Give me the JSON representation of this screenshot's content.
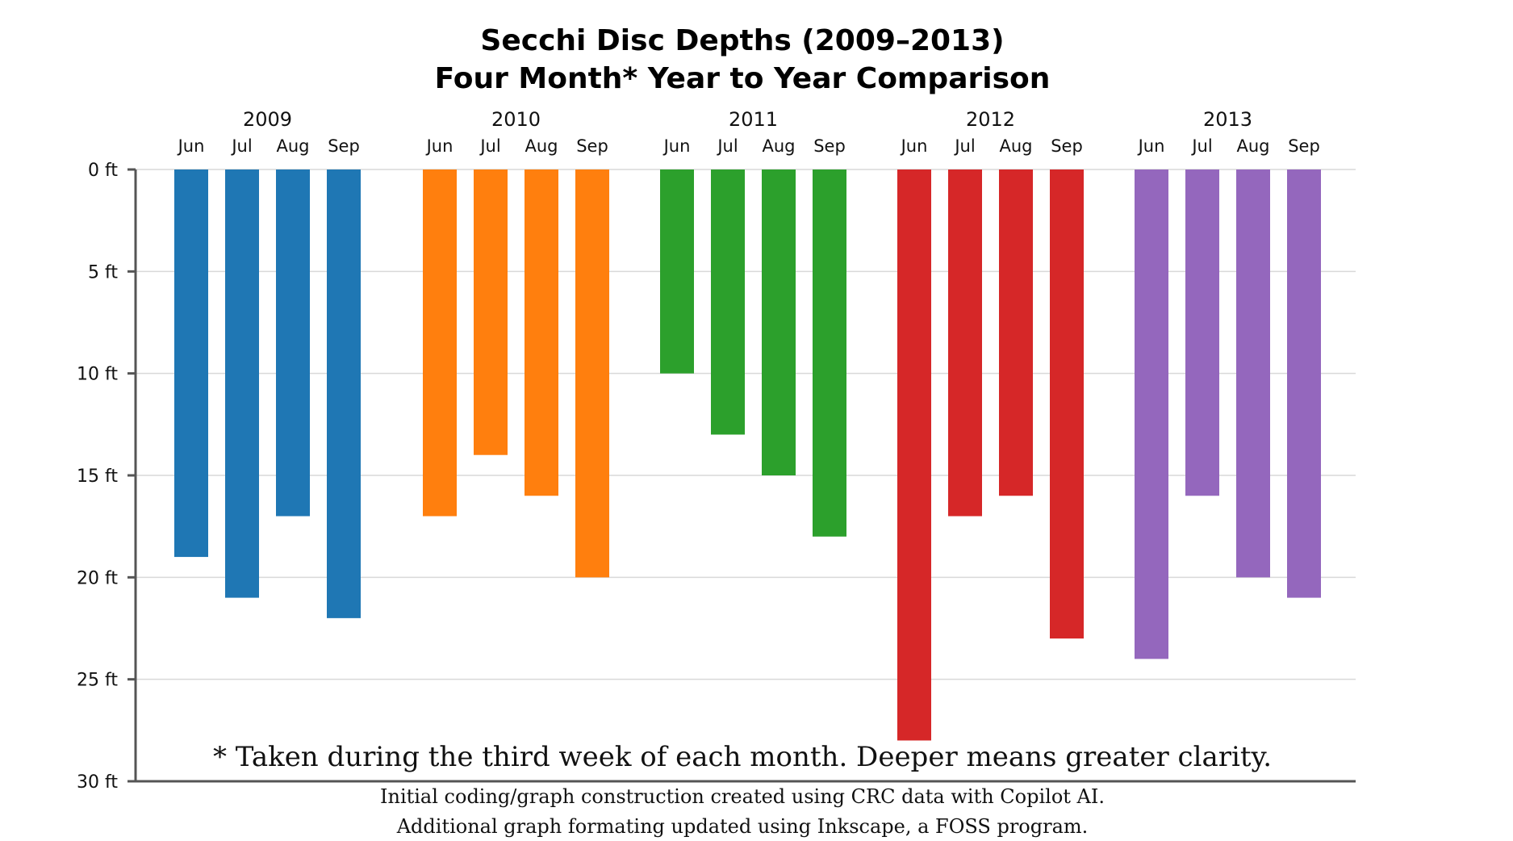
{
  "chart_data": {
    "type": "bar",
    "title": "Secchi Disc Depths (2009–2013)",
    "subtitle": "Four Month* Year to Year Comparison",
    "categories": [
      "Jun",
      "Jul",
      "Aug",
      "Sep"
    ],
    "series": [
      {
        "name": "2009",
        "color": "#1f77b4",
        "values": [
          19,
          21,
          17,
          22
        ]
      },
      {
        "name": "2010",
        "color": "#ff7f0e",
        "values": [
          17,
          14,
          16,
          20
        ]
      },
      {
        "name": "2011",
        "color": "#2ca02c",
        "values": [
          10,
          13,
          15,
          18
        ]
      },
      {
        "name": "2012",
        "color": "#d62728",
        "values": [
          28,
          17,
          16,
          23
        ]
      },
      {
        "name": "2013",
        "color": "#9467bd",
        "values": [
          24,
          16,
          20,
          21
        ]
      }
    ],
    "y_ticks": [
      {
        "value": 0,
        "label": "0 ft"
      },
      {
        "value": 5,
        "label": "5 ft"
      },
      {
        "value": 10,
        "label": "10 ft"
      },
      {
        "value": 15,
        "label": "15 ft"
      },
      {
        "value": 20,
        "label": "20 ft"
      },
      {
        "value": 25,
        "label": "25 ft"
      },
      {
        "value": 30,
        "label": "30 ft"
      }
    ],
    "ylim": [
      0,
      30
    ],
    "y_inverted": true,
    "grid": "horizontal",
    "footnote": "* Taken during the third week of  each month.  Deeper means greater clarity.",
    "credit_lines": [
      "Initial coding/graph construction created using CRC data with Copilot AI.",
      "Additional graph formating updated using Inkscape, a FOSS program."
    ]
  }
}
